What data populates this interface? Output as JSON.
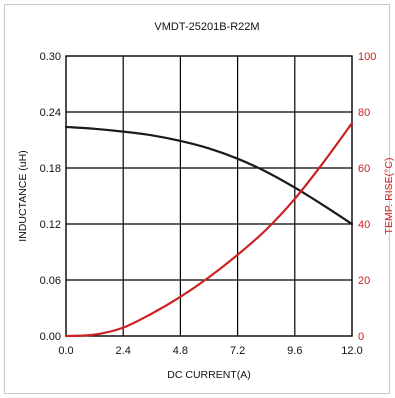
{
  "chart_data": {
    "type": "line",
    "title": "VMDT-25201B-R22M",
    "xlabel": "DC CURRENT(A)",
    "ylabel_left": "INDUCTANCE (uH)",
    "ylabel_right": "TEMP. RISE(°C)",
    "xlim": [
      0,
      12
    ],
    "ylim_left": [
      0,
      0.3
    ],
    "ylim_right": [
      0,
      100
    ],
    "x_ticks": [
      "0.0",
      "2.4",
      "4.8",
      "7.2",
      "9.6",
      "12.0"
    ],
    "y_left_ticks": [
      "0.00",
      "0.06",
      "0.12",
      "0.18",
      "0.24",
      "0.30"
    ],
    "y_right_ticks": [
      "0",
      "20",
      "40",
      "60",
      "80",
      "100"
    ],
    "grid": true,
    "colors": {
      "inductance": "#1a1a1a",
      "temp": "#cc2222",
      "grid": "#000000"
    },
    "series": [
      {
        "axis": "left",
        "x": [
          0,
          1.2,
          2.4,
          3.6,
          4.8,
          6.0,
          7.2,
          8.4,
          9.6,
          10.8,
          12.0
        ],
        "values": [
          0.224,
          0.222,
          0.219,
          0.215,
          0.209,
          0.201,
          0.19,
          0.176,
          0.159,
          0.14,
          0.12
        ]
      },
      {
        "axis": "right",
        "x": [
          0,
          1.2,
          2.4,
          3.6,
          4.8,
          6.0,
          7.2,
          8.4,
          9.6,
          10.8,
          12.0
        ],
        "values": [
          0,
          0.5,
          3,
          8,
          14,
          21,
          29,
          38,
          49,
          62,
          76
        ]
      }
    ]
  }
}
